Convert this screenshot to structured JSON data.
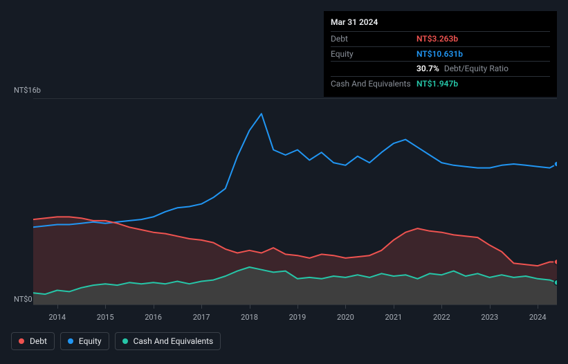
{
  "tooltip": {
    "date": "Mar 31 2024",
    "rows": [
      {
        "label": "Debt",
        "value": "NT$3.263b",
        "cls": "debt"
      },
      {
        "label": "Equity",
        "value": "NT$10.631b",
        "cls": "equity"
      },
      {
        "label": "",
        "value": "30.7%",
        "cls": "ratio",
        "suffix": "Debt/Equity Ratio"
      },
      {
        "label": "Cash And Equivalents",
        "value": "NT$1.947b",
        "cls": "cash"
      }
    ]
  },
  "chart": {
    "type": "area-line",
    "background_color": "#151b24",
    "grid_color": "#2a3038",
    "ymin": 0,
    "ymax": 16,
    "y_ticks": [
      {
        "value": 0,
        "label": "NT$0"
      },
      {
        "value": 16,
        "label": "NT$16b"
      }
    ],
    "x_years": [
      2014,
      2015,
      2016,
      2017,
      2018,
      2019,
      2020,
      2021,
      2022,
      2023,
      2024
    ],
    "x_start": 2013.5,
    "x_end": 2024.4,
    "series": {
      "debt": {
        "name": "Debt",
        "color": "#ef5350",
        "fill_opacity": 0.18,
        "points": [
          [
            2013.5,
            6.6
          ],
          [
            2013.75,
            6.7
          ],
          [
            2014.0,
            6.8
          ],
          [
            2014.25,
            6.8
          ],
          [
            2014.5,
            6.7
          ],
          [
            2014.75,
            6.5
          ],
          [
            2015.0,
            6.5
          ],
          [
            2015.25,
            6.3
          ],
          [
            2015.5,
            6.0
          ],
          [
            2015.75,
            5.8
          ],
          [
            2016.0,
            5.6
          ],
          [
            2016.25,
            5.5
          ],
          [
            2016.5,
            5.3
          ],
          [
            2016.75,
            5.1
          ],
          [
            2017.0,
            5.0
          ],
          [
            2017.25,
            4.8
          ],
          [
            2017.5,
            4.3
          ],
          [
            2017.75,
            4.0
          ],
          [
            2018.0,
            4.2
          ],
          [
            2018.25,
            4.0
          ],
          [
            2018.5,
            4.4
          ],
          [
            2018.75,
            3.9
          ],
          [
            2019.0,
            3.8
          ],
          [
            2019.25,
            3.6
          ],
          [
            2019.5,
            3.9
          ],
          [
            2019.75,
            3.8
          ],
          [
            2020.0,
            3.6
          ],
          [
            2020.25,
            3.7
          ],
          [
            2020.5,
            3.8
          ],
          [
            2020.75,
            4.2
          ],
          [
            2021.0,
            5.0
          ],
          [
            2021.25,
            5.6
          ],
          [
            2021.5,
            5.9
          ],
          [
            2021.75,
            5.7
          ],
          [
            2022.0,
            5.6
          ],
          [
            2022.25,
            5.4
          ],
          [
            2022.5,
            5.3
          ],
          [
            2022.75,
            5.2
          ],
          [
            2023.0,
            4.6
          ],
          [
            2023.25,
            4.1
          ],
          [
            2023.5,
            3.2
          ],
          [
            2023.75,
            3.1
          ],
          [
            2024.0,
            3.0
          ],
          [
            2024.25,
            3.3
          ],
          [
            2024.4,
            3.3
          ]
        ]
      },
      "equity": {
        "name": "Equity",
        "color": "#2196f3",
        "fill_opacity": 0.0,
        "points": [
          [
            2013.5,
            6.0
          ],
          [
            2013.75,
            6.1
          ],
          [
            2014.0,
            6.2
          ],
          [
            2014.25,
            6.2
          ],
          [
            2014.5,
            6.3
          ],
          [
            2014.75,
            6.4
          ],
          [
            2015.0,
            6.3
          ],
          [
            2015.25,
            6.4
          ],
          [
            2015.5,
            6.5
          ],
          [
            2015.75,
            6.6
          ],
          [
            2016.0,
            6.8
          ],
          [
            2016.25,
            7.2
          ],
          [
            2016.5,
            7.5
          ],
          [
            2016.75,
            7.6
          ],
          [
            2017.0,
            7.8
          ],
          [
            2017.25,
            8.3
          ],
          [
            2017.5,
            9.0
          ],
          [
            2017.75,
            11.5
          ],
          [
            2018.0,
            13.5
          ],
          [
            2018.25,
            14.8
          ],
          [
            2018.5,
            12.0
          ],
          [
            2018.75,
            11.6
          ],
          [
            2019.0,
            12.0
          ],
          [
            2019.25,
            11.2
          ],
          [
            2019.5,
            11.8
          ],
          [
            2019.75,
            11.0
          ],
          [
            2020.0,
            10.8
          ],
          [
            2020.25,
            11.5
          ],
          [
            2020.5,
            11.0
          ],
          [
            2020.75,
            11.8
          ],
          [
            2021.0,
            12.5
          ],
          [
            2021.25,
            12.8
          ],
          [
            2021.5,
            12.2
          ],
          [
            2021.75,
            11.6
          ],
          [
            2022.0,
            11.0
          ],
          [
            2022.25,
            10.8
          ],
          [
            2022.5,
            10.7
          ],
          [
            2022.75,
            10.6
          ],
          [
            2023.0,
            10.6
          ],
          [
            2023.25,
            10.8
          ],
          [
            2023.5,
            10.9
          ],
          [
            2023.75,
            10.8
          ],
          [
            2024.0,
            10.7
          ],
          [
            2024.25,
            10.6
          ],
          [
            2024.4,
            10.9
          ]
        ]
      },
      "cash": {
        "name": "Cash And Equivalents",
        "color": "#26c6a8",
        "fill_opacity": 0.18,
        "points": [
          [
            2013.5,
            0.9
          ],
          [
            2013.75,
            0.8
          ],
          [
            2014.0,
            1.1
          ],
          [
            2014.25,
            1.0
          ],
          [
            2014.5,
            1.3
          ],
          [
            2014.75,
            1.5
          ],
          [
            2015.0,
            1.6
          ],
          [
            2015.25,
            1.5
          ],
          [
            2015.5,
            1.7
          ],
          [
            2015.75,
            1.6
          ],
          [
            2016.0,
            1.7
          ],
          [
            2016.25,
            1.6
          ],
          [
            2016.5,
            1.8
          ],
          [
            2016.75,
            1.6
          ],
          [
            2017.0,
            1.8
          ],
          [
            2017.25,
            1.9
          ],
          [
            2017.5,
            2.2
          ],
          [
            2017.75,
            2.6
          ],
          [
            2018.0,
            2.9
          ],
          [
            2018.25,
            2.7
          ],
          [
            2018.5,
            2.5
          ],
          [
            2018.75,
            2.6
          ],
          [
            2019.0,
            2.0
          ],
          [
            2019.25,
            2.1
          ],
          [
            2019.5,
            2.0
          ],
          [
            2019.75,
            2.2
          ],
          [
            2020.0,
            2.1
          ],
          [
            2020.25,
            2.3
          ],
          [
            2020.5,
            2.1
          ],
          [
            2020.75,
            2.4
          ],
          [
            2021.0,
            2.2
          ],
          [
            2021.25,
            2.3
          ],
          [
            2021.5,
            2.0
          ],
          [
            2021.75,
            2.4
          ],
          [
            2022.0,
            2.3
          ],
          [
            2022.25,
            2.6
          ],
          [
            2022.5,
            2.2
          ],
          [
            2022.75,
            2.4
          ],
          [
            2023.0,
            2.1
          ],
          [
            2023.25,
            2.3
          ],
          [
            2023.5,
            2.1
          ],
          [
            2023.75,
            2.2
          ],
          [
            2024.0,
            2.0
          ],
          [
            2024.25,
            1.9
          ],
          [
            2024.4,
            1.7
          ]
        ]
      }
    },
    "line_width": 2,
    "marker_end": {
      "enabled": true,
      "radius": 4
    }
  },
  "legend": [
    {
      "key": "debt",
      "label": "Debt"
    },
    {
      "key": "equity",
      "label": "Equity"
    },
    {
      "key": "cash",
      "label": "Cash And Equivalents"
    }
  ]
}
